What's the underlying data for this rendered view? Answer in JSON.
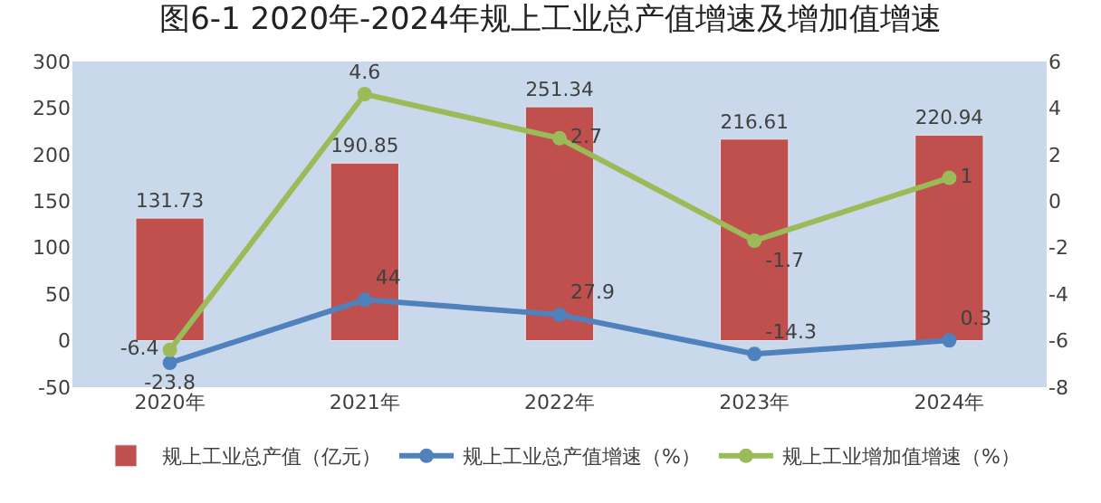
{
  "chart_data": {
    "type": "bar",
    "title": "图6-1 2020年-2024年规上工业总产值增速及增加值增速",
    "categories": [
      "2020年",
      "2021年",
      "2022年",
      "2023年",
      "2024年"
    ],
    "series": [
      {
        "name": "规上工业总产值（亿元）",
        "color": "#c0504d",
        "values": [
          131.73,
          190.85,
          251.34,
          216.61,
          220.94
        ]
      },
      {
        "name": "规上工业总产值增速（%）",
        "type": "line",
        "color": "#4f81bd",
        "marker": "circle",
        "values": [
          -23.8,
          44,
          27.9,
          -14.3,
          0.3
        ]
      },
      {
        "name": "规上工业增加值增速（%）",
        "type": "line",
        "axis": "y2",
        "color": "#9bbb59",
        "marker": "circle",
        "values": [
          -6.4,
          4.6,
          2.7,
          -1.7,
          1
        ]
      }
    ],
    "ylim": [
      -50,
      300
    ],
    "yticks": [
      -50,
      0,
      50,
      100,
      150,
      200,
      250,
      300
    ],
    "y2lim": [
      -8,
      6
    ],
    "y2ticks": [
      -8,
      -6,
      -4,
      -2,
      0,
      2,
      4,
      6
    ],
    "data_labels": true,
    "grid": false,
    "legend": "bottom"
  }
}
